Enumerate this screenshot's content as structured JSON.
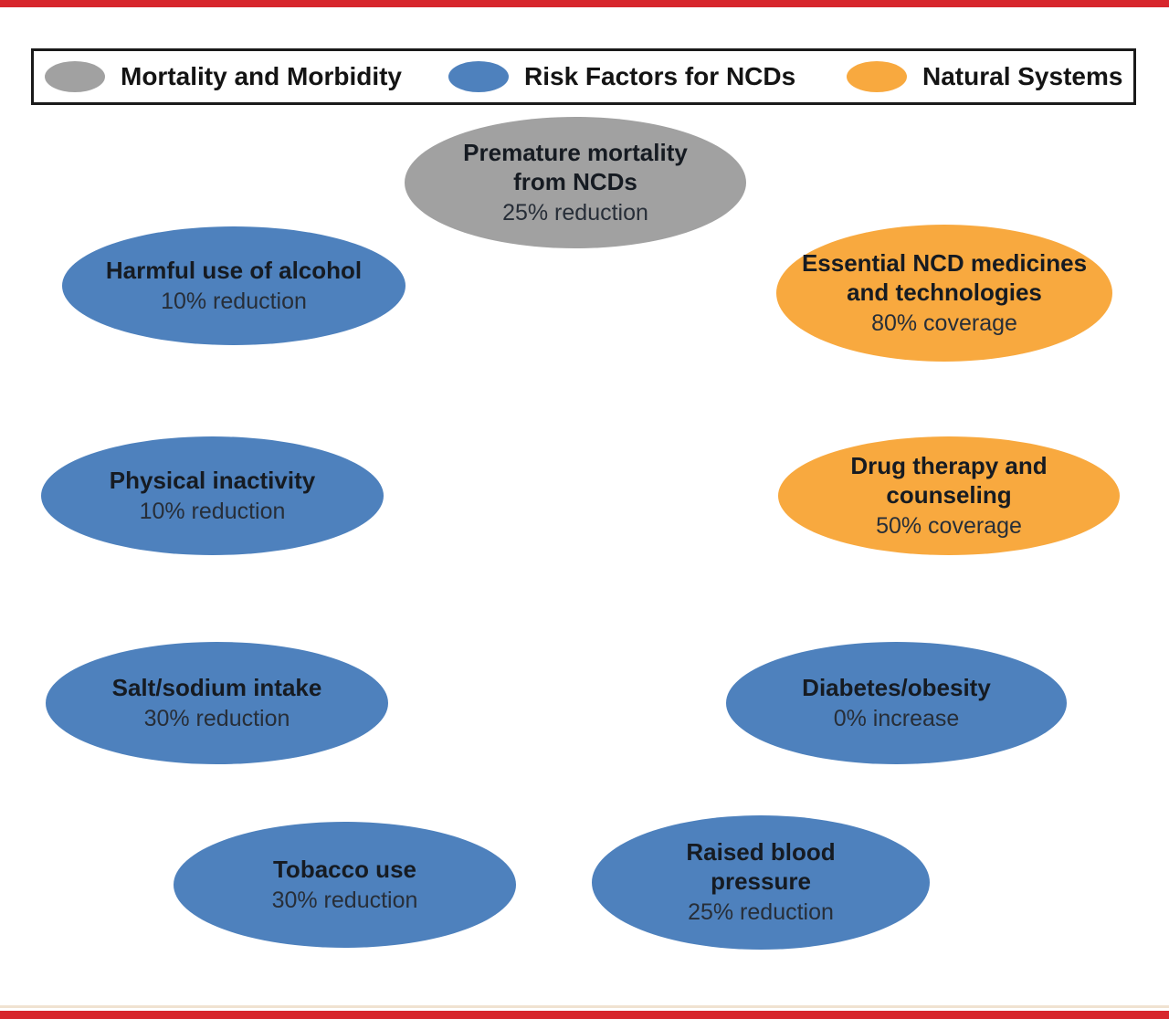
{
  "figure": {
    "background": "#ffffff",
    "top_bar_color": "#d7262c",
    "bottom_bar_color": "#d7262c",
    "bottom_accent_line_color": "#f0e2d1"
  },
  "legend": {
    "border_color": "#1a1a1a",
    "items": [
      {
        "label": "Mortality and Morbidity",
        "color": "#a1a1a1"
      },
      {
        "label": "Risk Factors for NCDs",
        "color": "#4e81bd"
      },
      {
        "label": "Natural Systems",
        "color": "#f8a93f"
      }
    ]
  },
  "nodes": [
    {
      "title": "Premature mortality from NCDs",
      "value": "25% reduction",
      "category": "Mortality and Morbidity",
      "color": "#a1a1a1"
    },
    {
      "title": "Harmful use of alcohol",
      "value": "10% reduction",
      "category": "Risk Factors for NCDs",
      "color": "#4e81bd"
    },
    {
      "title": "Essential NCD medicines and technologies",
      "value": "80% coverage",
      "category": "Natural Systems",
      "color": "#f8a93f"
    },
    {
      "title": "Physical inactivity",
      "value": "10% reduction",
      "category": "Risk Factors for NCDs",
      "color": "#4e81bd"
    },
    {
      "title": "Drug therapy and counseling",
      "value": "50% coverage",
      "category": "Natural Systems",
      "color": "#f8a93f"
    },
    {
      "title": "Salt/sodium intake",
      "value": "30% reduction",
      "category": "Risk Factors for NCDs",
      "color": "#4e81bd"
    },
    {
      "title": "Diabetes/obesity",
      "value": "0% increase",
      "category": "Risk Factors for NCDs",
      "color": "#4e81bd"
    },
    {
      "title": "Tobacco use",
      "value": "30% reduction",
      "category": "Risk Factors for NCDs",
      "color": "#4e81bd"
    },
    {
      "title": "Raised blood pressure",
      "value": "25% reduction",
      "category": "Risk Factors for NCDs",
      "color": "#4e81bd"
    }
  ]
}
